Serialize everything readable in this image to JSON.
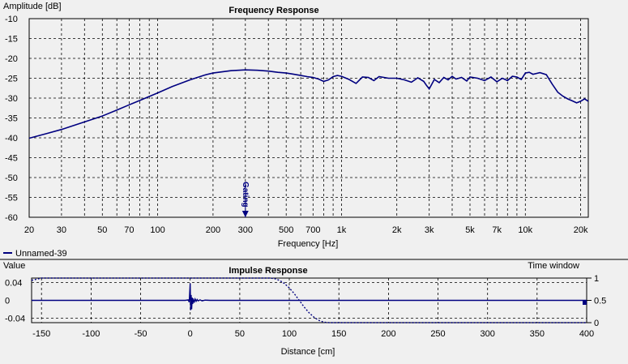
{
  "chart_data": [
    {
      "type": "line",
      "title": "Frequency Response",
      "ylabel": "Amplitude [dB]",
      "xlabel": "Frequency [Hz]",
      "xscale": "log",
      "xlim": [
        20,
        22000
      ],
      "ylim": [
        -60,
        -10
      ],
      "x_ticks": [
        20,
        30,
        50,
        70,
        100,
        200,
        300,
        500,
        700,
        1000,
        2000,
        3000,
        5000,
        7000,
        10000,
        20000
      ],
      "x_tick_labels": [
        "20",
        "30",
        "50",
        "70",
        "100",
        "200",
        "300",
        "500",
        "700",
        "1k",
        "2k",
        "3k",
        "5k",
        "7k",
        "10k",
        "20k"
      ],
      "y_ticks": [
        -10,
        -15,
        -20,
        -25,
        -30,
        -35,
        -40,
        -45,
        -50,
        -55,
        -60
      ],
      "grid": true,
      "legend": "bottom-left",
      "marker": {
        "x": 300,
        "label": "Gating"
      },
      "series": [
        {
          "name": "Unnamed-39",
          "color": "#000080",
          "x": [
            20,
            25,
            30,
            40,
            50,
            60,
            70,
            80,
            100,
            120,
            150,
            180,
            200,
            250,
            300,
            350,
            400,
            450,
            500,
            550,
            600,
            650,
            700,
            750,
            800,
            850,
            900,
            950,
            1000,
            1100,
            1200,
            1300,
            1400,
            1500,
            1600,
            1800,
            2000,
            2200,
            2400,
            2600,
            2800,
            2900,
            3000,
            3200,
            3400,
            3600,
            3800,
            4000,
            4200,
            4500,
            4800,
            5000,
            5500,
            6000,
            6500,
            7000,
            7500,
            8000,
            8500,
            9000,
            9500,
            10000,
            10500,
            11000,
            12000,
            13000,
            14000,
            15000,
            16000,
            17000,
            18000,
            19000,
            20000,
            21000,
            22000
          ],
          "y": [
            -40.1,
            -38.9,
            -37.9,
            -36.0,
            -34.5,
            -33.0,
            -31.7,
            -30.6,
            -28.7,
            -27.1,
            -25.4,
            -24.2,
            -23.7,
            -23.1,
            -22.9,
            -23.0,
            -23.2,
            -23.5,
            -23.7,
            -24.0,
            -24.3,
            -24.6,
            -24.8,
            -25.2,
            -25.8,
            -25.4,
            -24.6,
            -24.3,
            -24.5,
            -25.3,
            -26.3,
            -24.7,
            -24.8,
            -25.6,
            -24.6,
            -25.0,
            -25.0,
            -25.4,
            -26.0,
            -24.9,
            -25.8,
            -26.8,
            -27.7,
            -25.3,
            -26.1,
            -24.8,
            -25.4,
            -24.5,
            -25.2,
            -24.8,
            -25.7,
            -24.7,
            -25.0,
            -25.6,
            -24.7,
            -25.9,
            -25.0,
            -25.6,
            -24.5,
            -24.7,
            -25.3,
            -23.7,
            -23.5,
            -24.0,
            -23.6,
            -24.1,
            -26.5,
            -28.5,
            -29.5,
            -30.2,
            -30.7,
            -31.2,
            -30.8,
            -30.2,
            -30.8
          ]
        }
      ]
    },
    {
      "type": "line",
      "title": "Impulse Response",
      "ylabel": "Value",
      "y2label": "Time window",
      "xlabel": "Distance [cm]",
      "xlim": [
        -160,
        400
      ],
      "ylim": [
        -0.05,
        0.05
      ],
      "y2lim": [
        0,
        1
      ],
      "x_ticks": [
        -150,
        -100,
        -50,
        0,
        50,
        100,
        150,
        200,
        250,
        300,
        350,
        400
      ],
      "y_ticks": [
        0.04,
        0,
        -0.04
      ],
      "y_tick_labels": [
        "0.04",
        "0",
        "-0.04"
      ],
      "y2_ticks": [
        1,
        0.5,
        0
      ],
      "grid": true,
      "series": [
        {
          "role": "impulse",
          "color": "#000080",
          "x": [
            -160,
            -5,
            -2,
            -1,
            0,
            0.5,
            1,
            1.5,
            2,
            2.5,
            3,
            4,
            5,
            6,
            7,
            8,
            10,
            12,
            15,
            20,
            30,
            400
          ],
          "y": [
            0,
            0,
            0.001,
            -0.004,
            0.038,
            -0.022,
            0.012,
            -0.02,
            0.006,
            -0.008,
            0.004,
            -0.005,
            0.003,
            -0.002,
            0.002,
            -0.001,
            0.001,
            -0.001,
            0.0005,
            0,
            0,
            0
          ]
        },
        {
          "role": "time-window",
          "color": "#000080",
          "dash": "dotted",
          "axis": "right",
          "x": [
            -160,
            -150,
            80,
            85,
            90,
            95,
            100,
            105,
            110,
            115,
            120,
            125,
            130,
            135,
            140,
            400
          ],
          "y": [
            0.95,
            1,
            1,
            0.99,
            0.95,
            0.88,
            0.78,
            0.65,
            0.5,
            0.35,
            0.22,
            0.12,
            0.05,
            0.01,
            0,
            0
          ]
        }
      ]
    }
  ]
}
